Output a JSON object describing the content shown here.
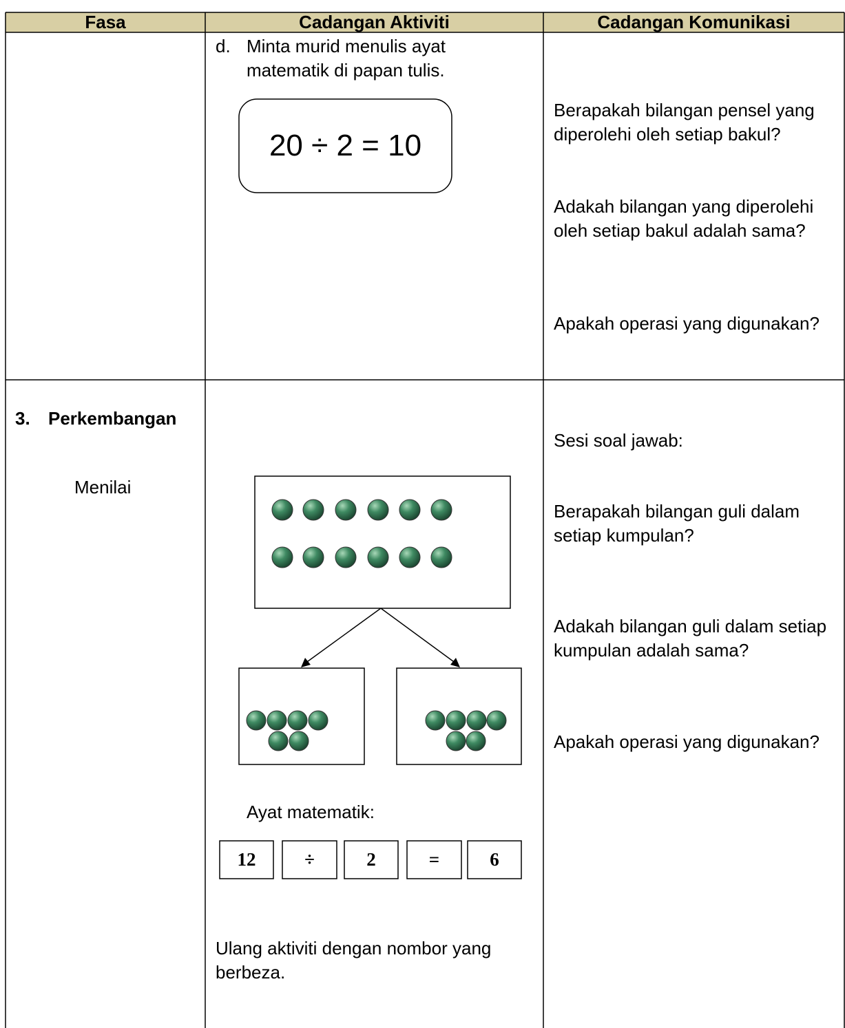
{
  "table": {
    "header": [
      "Fasa",
      "Cadangan Aktiviti",
      "Cadangan Komunikasi"
    ],
    "rows": [
      {
        "activity": {
          "marker": "d.",
          "text": "Minta murid menulis ayat matematik di papan tulis.",
          "equation": "20 ÷ 2 = 10"
        },
        "communication": [
          "Berapakah bilangan pensel yang diperolehi oleh setiap bakul?",
          "Adakah bilangan yang diperolehi oleh setiap bakul adalah sama?",
          "Apakah operasi yang digunakan?"
        ]
      },
      {
        "phase": {
          "number": "3.",
          "title": "Perkembangan",
          "subtitle": "Menilai"
        },
        "activity": {
          "sentence_label": "Ayat matematik:",
          "sentence_boxes": [
            "12",
            "÷",
            "2",
            "=",
            "6"
          ],
          "note": "Ulang aktiviti dengan nombor yang berbeza."
        },
        "communication": [
          "Sesi soal jawab:",
          "Berapakah bilangan guli dalam setiap kumpulan?",
          "Adakah bilangan guli dalam setiap kumpulan adalah sama?",
          "Apakah operasi yang digunakan?"
        ]
      }
    ]
  }
}
